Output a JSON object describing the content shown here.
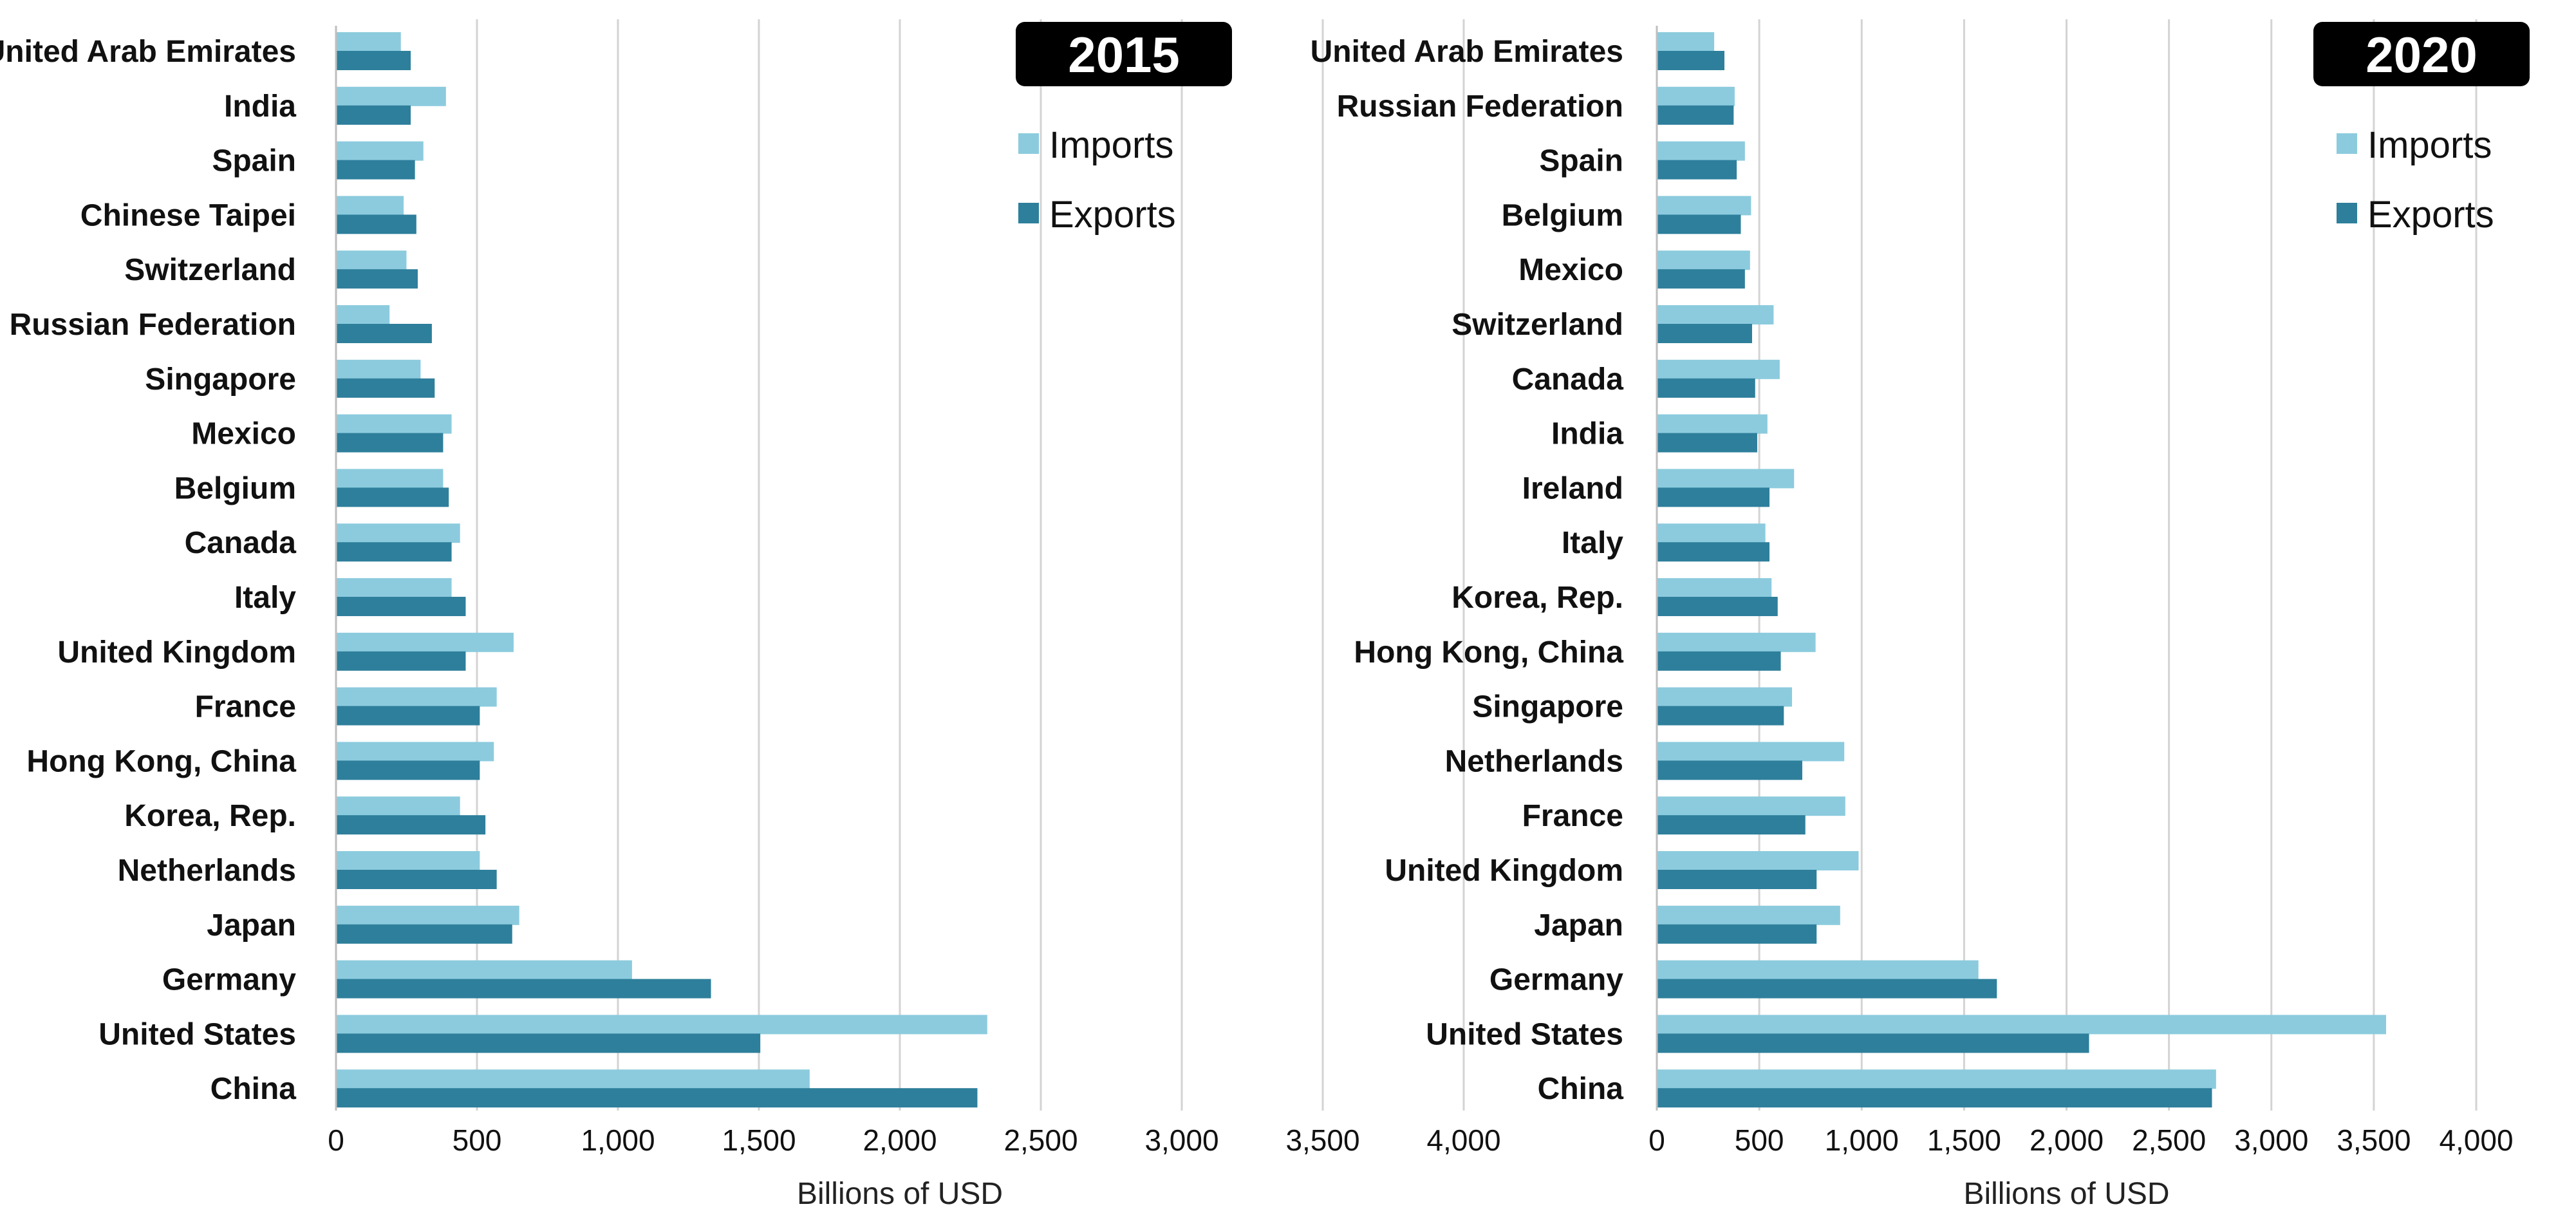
{
  "chart_data": [
    {
      "type": "bar",
      "orientation": "horizontal",
      "title": "2015",
      "xlabel": "Billions of USD",
      "ylabel": "",
      "xlim": [
        0,
        4000
      ],
      "xticks": [
        0,
        500,
        1000,
        1500,
        2000,
        2500,
        3000,
        3500,
        4000
      ],
      "xtick_labels": [
        "0",
        "500",
        "1,000",
        "1,500",
        "2,000",
        "2,500",
        "3,000",
        "3,500",
        "4,000"
      ],
      "grid": "vertical",
      "legend_position": "top-right",
      "categories": [
        "United Arab Emirates",
        "India",
        "Spain",
        "Chinese Taipei",
        "Switzerland",
        "Russian Federation",
        "Singapore",
        "Mexico",
        "Belgium",
        "Canada",
        "Italy",
        "United Kingdom",
        "France",
        "Hong Kong, China",
        "Korea, Rep.",
        "Netherlands",
        "Japan",
        "Germany",
        "United States",
        "China"
      ],
      "series": [
        {
          "name": "Imports",
          "color": "#8ccbde",
          "values": [
            230,
            390,
            310,
            240,
            250,
            190,
            300,
            410,
            380,
            440,
            410,
            630,
            570,
            560,
            440,
            510,
            650,
            1050,
            2310,
            1680
          ]
        },
        {
          "name": "Exports",
          "color": "#2e7f9b",
          "values": [
            265,
            265,
            280,
            285,
            290,
            340,
            350,
            380,
            400,
            410,
            460,
            460,
            510,
            510,
            530,
            570,
            625,
            1330,
            1505,
            2275
          ]
        }
      ]
    },
    {
      "type": "bar",
      "orientation": "horizontal",
      "title": "2020",
      "xlabel": "Billions of USD",
      "ylabel": "",
      "xlim": [
        0,
        4000
      ],
      "xticks": [
        0,
        500,
        1000,
        1500,
        2000,
        2500,
        3000,
        3500,
        4000
      ],
      "xtick_labels": [
        "0",
        "500",
        "1,000",
        "1,500",
        "2,000",
        "2,500",
        "3,000",
        "3,500",
        "4,000"
      ],
      "grid": "vertical",
      "legend_position": "top-right",
      "categories": [
        "United Arab Emirates",
        "Russian Federation",
        "Spain",
        "Belgium",
        "Mexico",
        "Switzerland",
        "Canada",
        "India",
        "Ireland",
        "Italy",
        "Korea, Rep.",
        "Hong Kong, China",
        "Singapore",
        "Netherlands",
        "France",
        "United Kingdom",
        "Japan",
        "Germany",
        "United States",
        "China"
      ],
      "series": [
        {
          "name": "Imports",
          "color": "#8ccbde",
          "values": [
            280,
            380,
            430,
            460,
            455,
            570,
            600,
            540,
            670,
            530,
            560,
            775,
            660,
            915,
            920,
            985,
            895,
            1570,
            3560,
            2730
          ]
        },
        {
          "name": "Exports",
          "color": "#2e7f9b",
          "values": [
            330,
            375,
            390,
            410,
            430,
            465,
            480,
            490,
            550,
            550,
            590,
            605,
            620,
            710,
            725,
            780,
            780,
            1660,
            2110,
            2710
          ]
        }
      ]
    }
  ]
}
